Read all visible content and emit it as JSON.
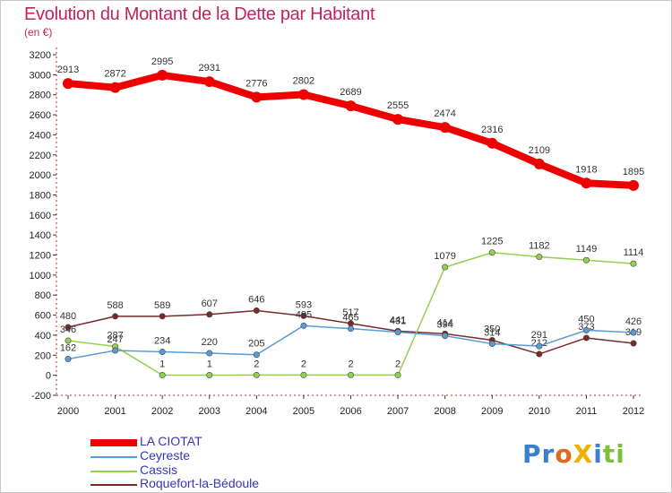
{
  "title": "Evolution du Montant de la Dette par Habitant",
  "subtitle": "(en €)",
  "chart_data": {
    "type": "line",
    "title": "Evolution du Montant de la Dette par Habitant",
    "ylabel": "(en €)",
    "xlabel": "",
    "ylim": [
      -200,
      3200
    ],
    "yticks": [
      -200,
      0,
      200,
      400,
      600,
      800,
      1000,
      1200,
      1400,
      1600,
      1800,
      2000,
      2200,
      2400,
      2600,
      2800,
      3000,
      3200
    ],
    "x": [
      "2000",
      "2001",
      "2002",
      "2003",
      "2004",
      "2005",
      "2006",
      "2007",
      "2008",
      "2009",
      "2010",
      "2011",
      "2012"
    ],
    "grid": false,
    "legend_position": "bottom-left",
    "series": [
      {
        "name": "LA CIOTAT",
        "color": "#ee0000",
        "values": [
          2913,
          2872,
          2995,
          2931,
          2776,
          2802,
          2689,
          2555,
          2474,
          2316,
          2109,
          1918,
          1895
        ]
      },
      {
        "name": "Ceyreste",
        "color": "#5b9bd5",
        "values": [
          162,
          247,
          234,
          220,
          205,
          495,
          465,
          431,
          394,
          314,
          291,
          450,
          426
        ]
      },
      {
        "name": "Cassis",
        "color": "#92d050",
        "values": [
          346,
          287,
          1,
          1,
          2,
          2,
          2,
          2,
          1079,
          1225,
          1182,
          1149,
          1114
        ]
      },
      {
        "name": "Roquefort-la-Bédoule",
        "color": "#7b2a2a",
        "values": [
          480,
          588,
          589,
          607,
          646,
          593,
          517,
          441,
          414,
          350,
          212,
          373,
          319
        ]
      }
    ]
  },
  "logo_text": "ProXiti",
  "logo_letters": [
    {
      "ch": "P",
      "color": "#3a7fd0"
    },
    {
      "ch": "r",
      "color": "#3a7fd0"
    },
    {
      "ch": "o",
      "color": "#e06a1a"
    },
    {
      "ch": "X",
      "color": "#f0b000"
    },
    {
      "ch": "i",
      "color": "#3a7fd0"
    },
    {
      "ch": "t",
      "color": "#7cc13a"
    },
    {
      "ch": "i",
      "color": "#7cc13a"
    }
  ]
}
